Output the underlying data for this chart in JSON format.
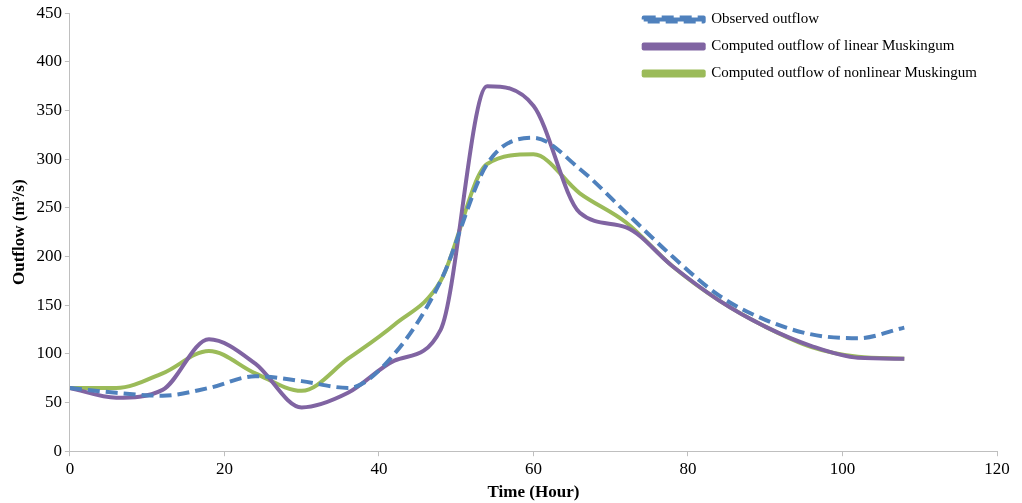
{
  "chart_data": {
    "type": "line",
    "xlabel": "Time (Hour)",
    "ylabel": "Outflow (m³/s)",
    "x": [
      0,
      6,
      12,
      18,
      24,
      30,
      36,
      42,
      48,
      54,
      60,
      66,
      72,
      78,
      84,
      90,
      96,
      102,
      108
    ],
    "series": [
      {
        "name": "Observed outflow",
        "color": "#4f81bd",
        "line_style": "dashed",
        "values": [
          65,
          60,
          57,
          65,
          77,
          72,
          65,
          100,
          175,
          295,
          322,
          290,
          245,
          200,
          160,
          135,
          120,
          116,
          127
        ]
      },
      {
        "name": "Computed outflow of linear Muskingum",
        "color": "#8064a2",
        "line_style": "solid",
        "values": [
          65,
          55,
          63,
          115,
          90,
          45,
          60,
          93,
          125,
          375,
          355,
          245,
          230,
          190,
          155,
          128,
          108,
          96,
          95
        ]
      },
      {
        "name": "Computed outflow of nonlinear Muskingum",
        "color": "#9bbb59",
        "line_style": "solid",
        "values": [
          65,
          65,
          80,
          103,
          80,
          62,
          95,
          130,
          175,
          295,
          305,
          265,
          235,
          190,
          155,
          128,
          107,
          97,
          95
        ]
      }
    ],
    "xlim": [
      0,
      120
    ],
    "xticks": [
      0,
      20,
      40,
      60,
      80,
      100,
      120
    ],
    "ylim": [
      0,
      450
    ],
    "yticks": [
      0,
      50,
      100,
      150,
      200,
      250,
      300,
      350,
      400,
      450
    ],
    "grid": false,
    "legend": "top right",
    "marker": "none"
  }
}
